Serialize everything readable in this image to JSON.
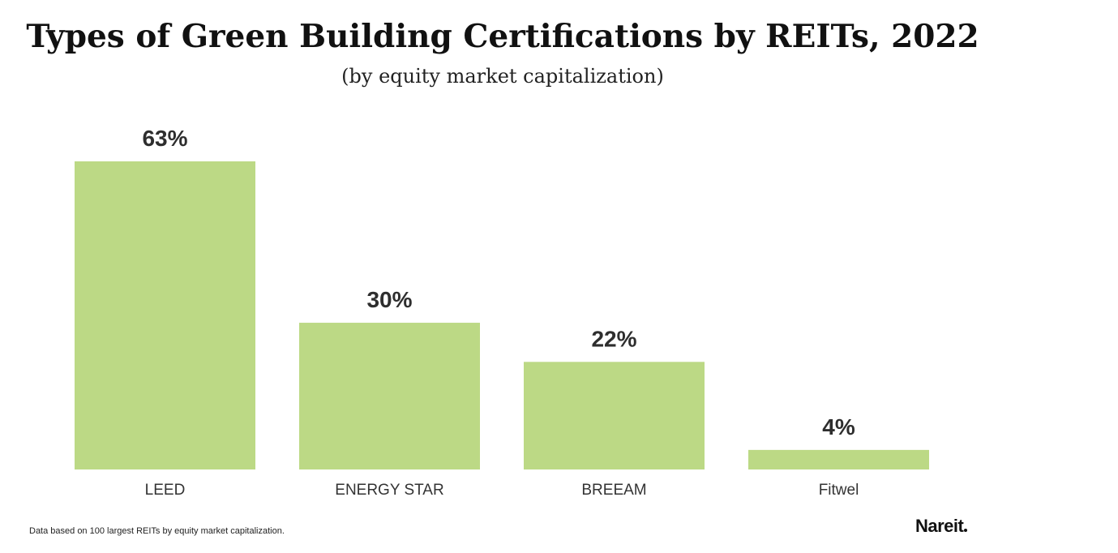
{
  "chart_data": {
    "type": "bar",
    "title": "Types of Green Building Certifications by REITs, 2022",
    "subtitle": "(by equity market capitalization)",
    "categories": [
      "LEED",
      "ENERGY STAR",
      "BREEAM",
      "Fitwel"
    ],
    "values": [
      63,
      30,
      22,
      4
    ],
    "value_labels": [
      "63%",
      "30%",
      "22%",
      "4%"
    ],
    "xlabel": "",
    "ylabel": "",
    "ylim": [
      0,
      63
    ],
    "grid": false,
    "bar_color": "#bcd985"
  },
  "footnote": "Data based on 100 largest REITs by equity market capitalization.",
  "logo": "Nareit"
}
